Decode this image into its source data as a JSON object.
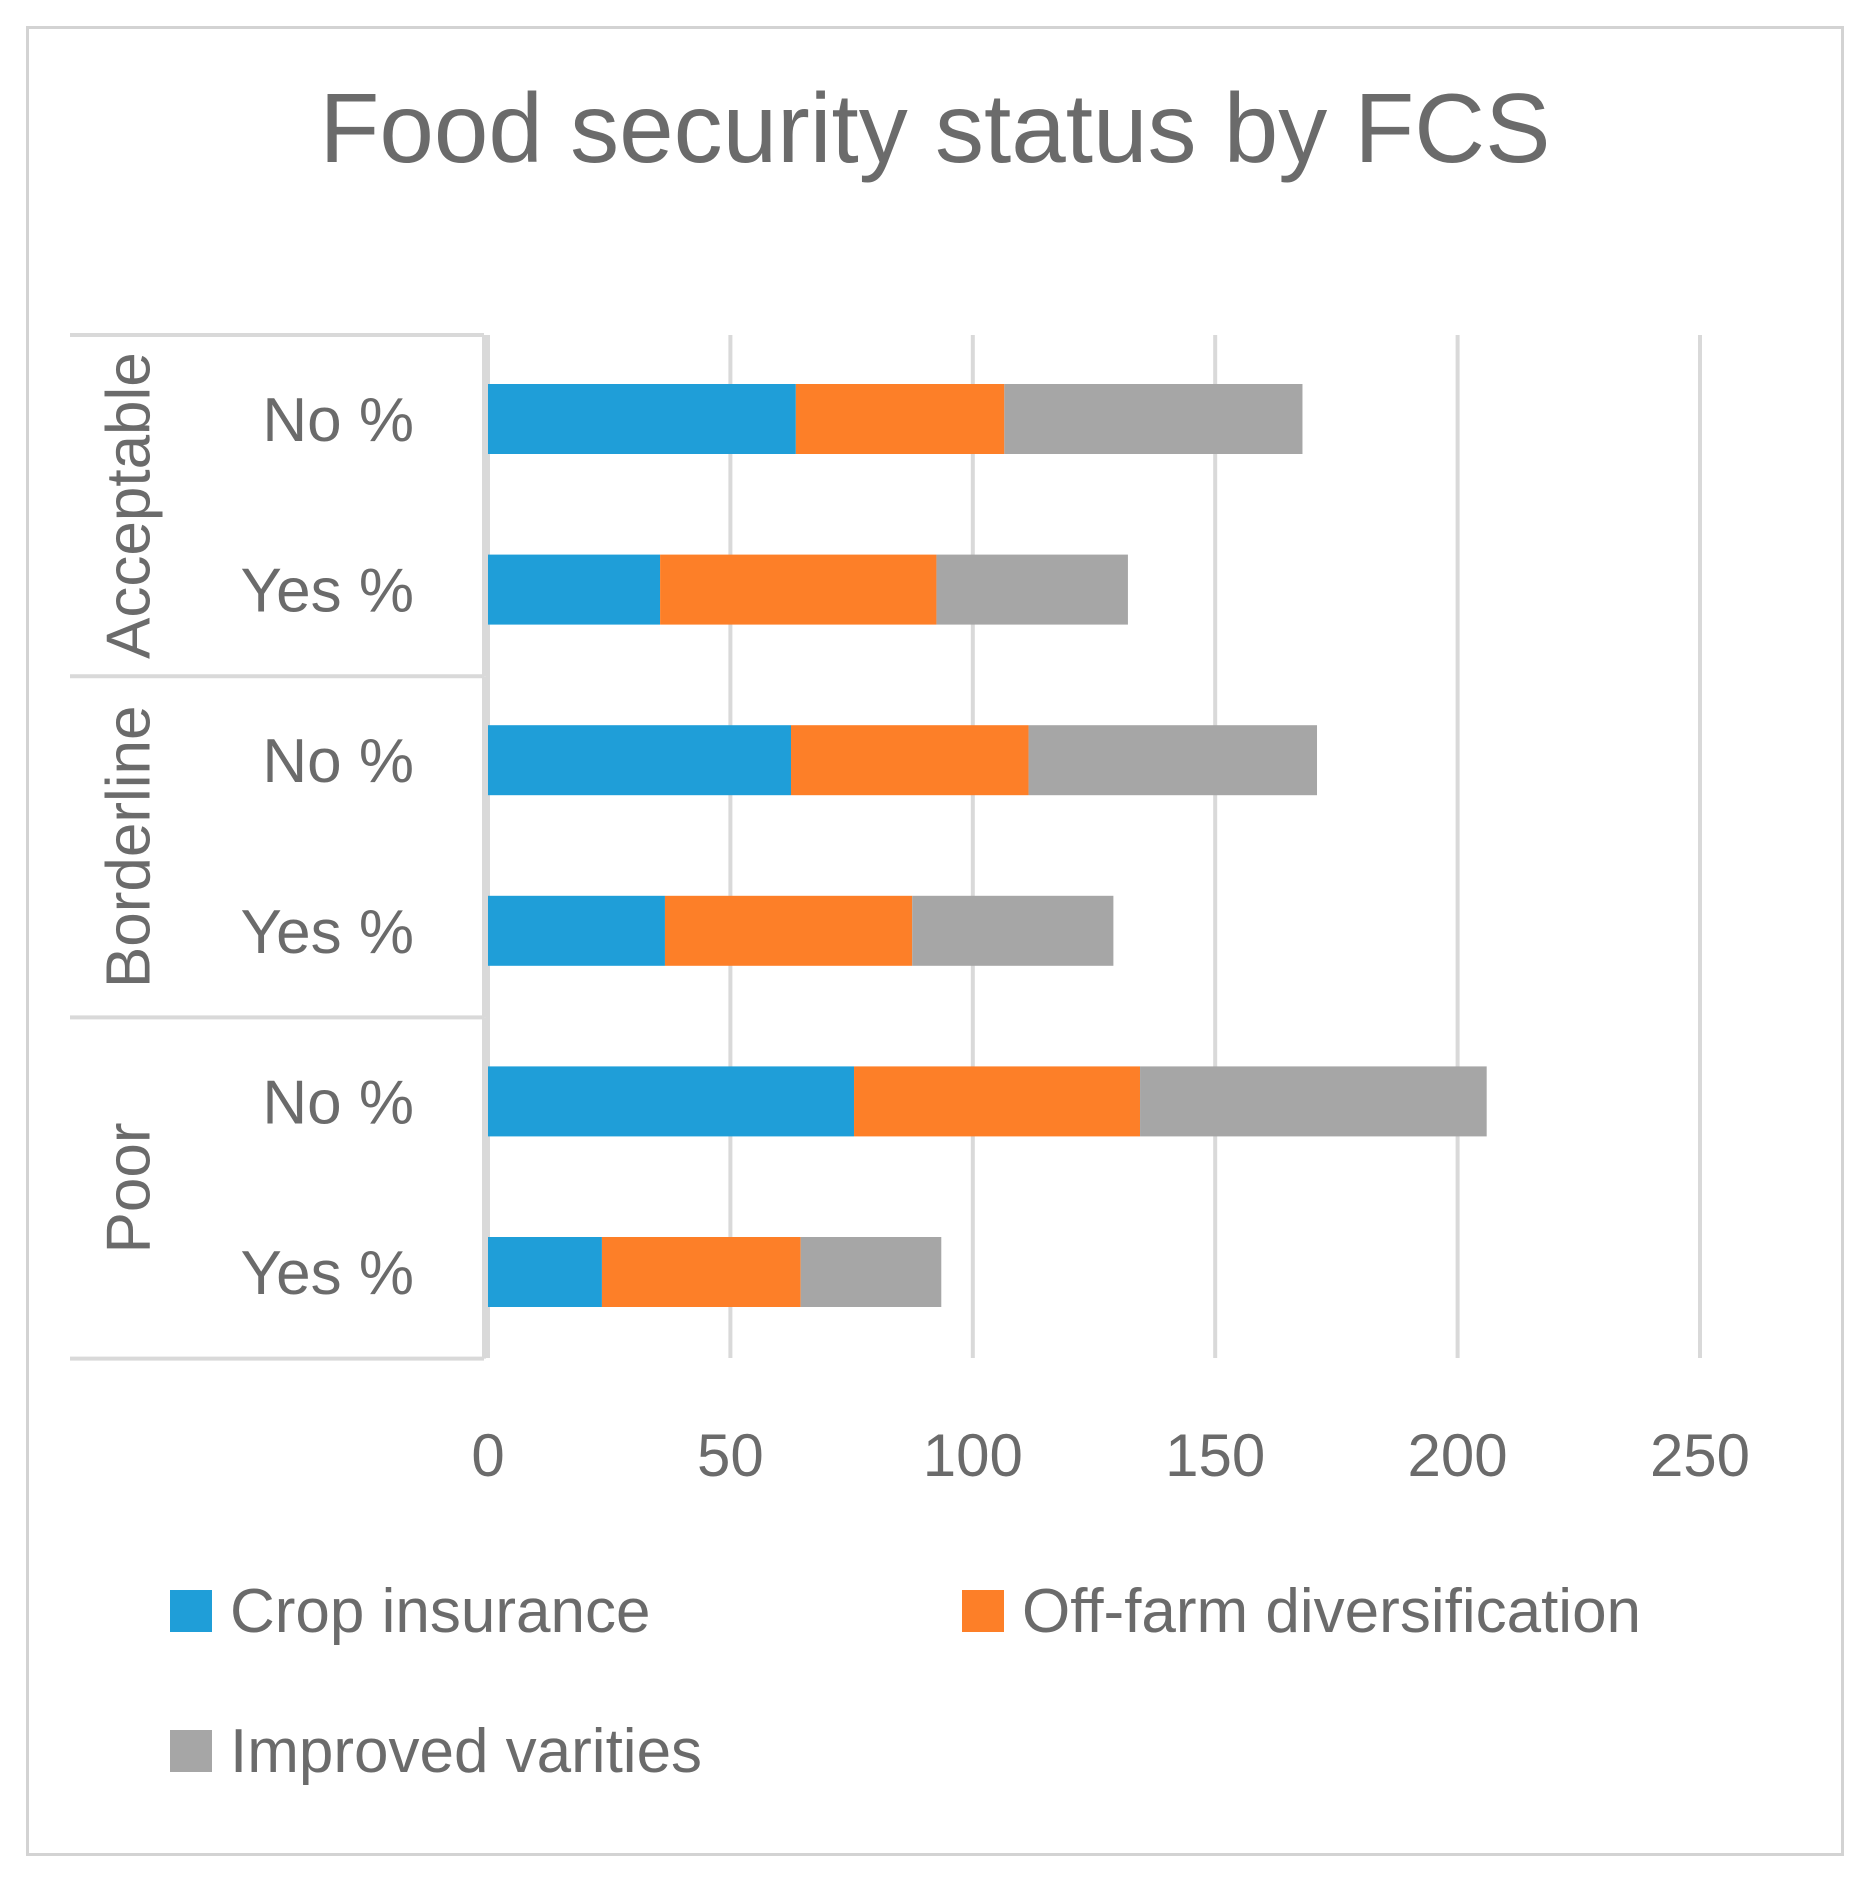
{
  "chart_data": {
    "type": "bar",
    "orientation": "horizontal",
    "stacked": true,
    "title": "Food security status by FCS",
    "xlim": [
      0,
      250
    ],
    "x_ticks": [
      "0",
      "50",
      "100",
      "150",
      "200",
      "250"
    ],
    "grid": true,
    "legend_position": "bottom",
    "groups": [
      {
        "name": "Acceptable",
        "categories": [
          "No %",
          "Yes %"
        ]
      },
      {
        "name": "Borderline",
        "categories": [
          "No %",
          "Yes %"
        ]
      },
      {
        "name": "Poor",
        "categories": [
          "No %",
          "Yes %"
        ]
      }
    ],
    "categories": [
      "Acceptable No %",
      "Acceptable Yes %",
      "Borderline No %",
      "Borderline Yes %",
      "Poor No %",
      "Poor Yes %"
    ],
    "series": [
      {
        "name": "Crop insurance",
        "color": "#1f9ed8",
        "values": [
          63.5,
          35.5,
          62.5,
          36.5,
          75.5,
          23.5
        ]
      },
      {
        "name": "Off-farm diversification",
        "color": "#fd7f28",
        "values": [
          43,
          57,
          49,
          51,
          59,
          41
        ]
      },
      {
        "name": "Improved varities",
        "color": "#a6a6a6",
        "values": [
          61.5,
          39.5,
          59.5,
          41.5,
          71.5,
          29
        ]
      }
    ]
  }
}
